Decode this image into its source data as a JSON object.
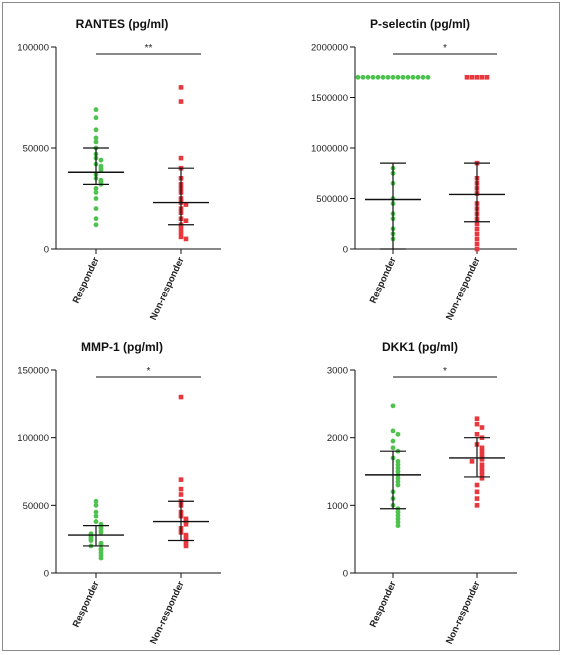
{
  "colors": {
    "responder": "#4ec24e",
    "non_responder": "#e8383d",
    "axis": "#111111"
  },
  "chart_data": [
    {
      "type": "scatter",
      "title": "RANTES (pg/ml)",
      "categories": [
        "Responder",
        "Non-responder"
      ],
      "ylim": [
        0,
        100000
      ],
      "yticks": [
        "0",
        "50000",
        "100000"
      ],
      "significance": "**",
      "series": [
        {
          "name": "Responder",
          "values": [
            69000,
            65000,
            59000,
            55000,
            53000,
            50000,
            47000,
            45000,
            44000,
            42000,
            41000,
            40000,
            39000,
            37000,
            35000,
            34000,
            33000,
            32000,
            30000,
            28000,
            25000,
            20000,
            15000,
            12000
          ],
          "median": 38000,
          "q1": 32000,
          "q3": 50000
        },
        {
          "name": "Non-responder",
          "values": [
            80000,
            73000,
            45000,
            40000,
            35000,
            32000,
            30000,
            28000,
            25000,
            23000,
            22000,
            20000,
            18000,
            15000,
            14000,
            12000,
            10000,
            8000,
            6000,
            5000
          ],
          "median": 23000,
          "q1": 12000,
          "q3": 40000
        }
      ]
    },
    {
      "type": "scatter",
      "title": "P-selectin (pg/ml)",
      "categories": [
        "Responder",
        "Non-responder"
      ],
      "ylim": [
        0,
        2000000
      ],
      "yticks": [
        "0",
        "500000",
        "1000000",
        "1500000",
        "2000000"
      ],
      "significance": "*",
      "series": [
        {
          "name": "Responder",
          "values": [
            1700000,
            1700000,
            1700000,
            1700000,
            1700000,
            1700000,
            1700000,
            1700000,
            1700000,
            1700000,
            1700000,
            1700000,
            1700000,
            1700000,
            1700000,
            800000,
            750000,
            650000,
            500000,
            450000,
            350000,
            300000,
            200000,
            150000,
            100000
          ],
          "median": 490000,
          "q1": 0,
          "q3": 850000
        },
        {
          "name": "Non-responder",
          "values": [
            1700000,
            1700000,
            1700000,
            1700000,
            1700000,
            850000,
            700000,
            650000,
            600000,
            550000,
            450000,
            400000,
            350000,
            300000,
            250000,
            200000,
            150000,
            100000,
            50000,
            0
          ],
          "median": 540000,
          "q1": 270000,
          "q3": 850000
        }
      ]
    },
    {
      "type": "scatter",
      "title": "MMP-1 (pg/ml)",
      "categories": [
        "Responder",
        "Non-responder"
      ],
      "ylim": [
        0,
        150000
      ],
      "yticks": [
        "0",
        "50000",
        "100000",
        "150000"
      ],
      "significance": "*",
      "series": [
        {
          "name": "Responder",
          "values": [
            53000,
            50000,
            45000,
            42000,
            38000,
            36000,
            34000,
            33000,
            31000,
            30000,
            29000,
            28000,
            27000,
            26000,
            25000,
            24000,
            22000,
            21000,
            20000,
            18000,
            17000,
            15000,
            13000,
            11000
          ],
          "median": 28000,
          "q1": 20000,
          "q3": 35000
        },
        {
          "name": "Non-responder",
          "values": [
            130000,
            69000,
            62000,
            58000,
            53000,
            50000,
            45000,
            42000,
            40000,
            38000,
            36000,
            33000,
            30000,
            28000,
            26000,
            24000,
            22000,
            20000
          ],
          "median": 38000,
          "q1": 24000,
          "q3": 53000
        }
      ]
    },
    {
      "type": "scatter",
      "title": "DKK1 (pg/ml)",
      "categories": [
        "Responder",
        "Non-responder"
      ],
      "ylim": [
        0,
        3000
      ],
      "yticks": [
        "0",
        "1000",
        "2000",
        "3000"
      ],
      "significance": "*",
      "series": [
        {
          "name": "Responder",
          "values": [
            2470,
            2100,
            2050,
            1950,
            1850,
            1800,
            1700,
            1650,
            1600,
            1550,
            1500,
            1450,
            1400,
            1350,
            1300,
            1200,
            1100,
            1000,
            950,
            900,
            850,
            800,
            750,
            700
          ],
          "median": 1450,
          "q1": 950,
          "q3": 1800
        },
        {
          "name": "Non-responder",
          "values": [
            2280,
            2200,
            2150,
            2050,
            2000,
            1900,
            1850,
            1800,
            1750,
            1700,
            1680,
            1650,
            1600,
            1550,
            1500,
            1450,
            1400,
            1300,
            1200,
            1100,
            1000
          ],
          "median": 1700,
          "q1": 1420,
          "q3": 2000
        }
      ]
    }
  ]
}
